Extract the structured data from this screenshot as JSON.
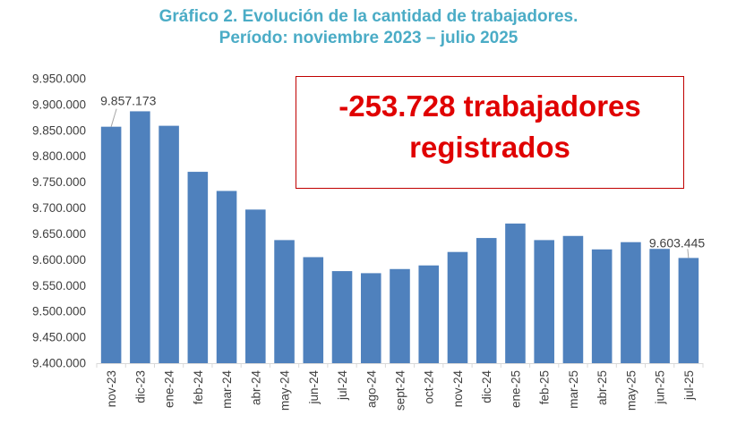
{
  "chart_data": {
    "type": "bar",
    "title": "Gráfico 2. Evolución de la cantidad de trabajadores.",
    "subtitle": "Período: noviembre 2023 – julio 2025",
    "categories": [
      "nov-23",
      "dic-23",
      "ene-24",
      "feb-24",
      "mar-24",
      "abr-24",
      "may-24",
      "jun-24",
      "jul-24",
      "ago-24",
      "sept-24",
      "oct-24",
      "nov-24",
      "dic-24",
      "ene-25",
      "feb-25",
      "mar-25",
      "abr-25",
      "may-25",
      "jun-25",
      "jul-25"
    ],
    "values": [
      9857173,
      9887000,
      9859000,
      9770000,
      9733000,
      9697000,
      9638000,
      9605000,
      9578000,
      9574000,
      9582000,
      9589000,
      9615000,
      9642000,
      9670000,
      9638000,
      9646000,
      9620000,
      9634000,
      9621000,
      9603445
    ],
    "yticks": [
      "9.400.000",
      "9.450.000",
      "9.500.000",
      "9.550.000",
      "9.600.000",
      "9.650.000",
      "9.700.000",
      "9.750.000",
      "9.800.000",
      "9.850.000",
      "9.900.000",
      "9.950.000"
    ],
    "ylim": [
      9400000,
      9950000
    ],
    "data_labels": [
      {
        "category": "nov-23",
        "text": "9.857.173"
      },
      {
        "category": "jul-25",
        "text": "9.603.445"
      }
    ],
    "bar_color": "#4F81BD",
    "xlabel": "",
    "ylabel": ""
  },
  "callout": {
    "line1": "-253.728 trabajadores",
    "line2": "registrados",
    "color": "#E00000"
  }
}
